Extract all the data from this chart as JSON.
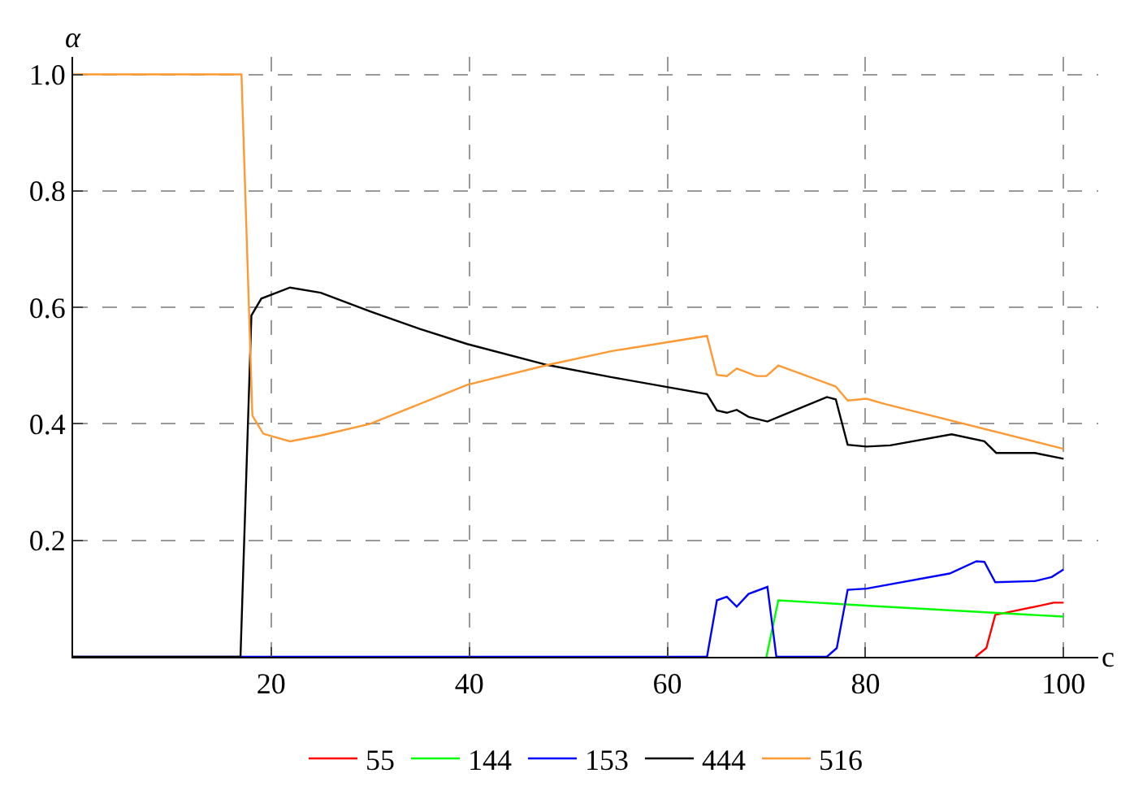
{
  "chart_data": {
    "type": "line",
    "xlabel": "c",
    "ylabel": "α",
    "xlim": [
      0,
      103.5
    ],
    "ylim": [
      0,
      1.03
    ],
    "xticks": [
      20,
      40,
      60,
      80,
      100
    ],
    "yticks": [
      0.2,
      0.4,
      0.6,
      0.8,
      {
        "value": 1,
        "label": "1.0"
      }
    ],
    "grid": true,
    "legend": "bottom",
    "marker": "none",
    "line_style": "solid",
    "series": [
      {
        "name": "55",
        "color": "#ff0000",
        "x": [
          91.1,
          92.2,
          93.1,
          97.7,
          99,
          100
        ],
        "values": [
          0,
          0.015,
          0.072,
          0.088,
          0.093,
          0.093
        ]
      },
      {
        "name": "144",
        "color": "#00ff00",
        "x": [
          70,
          71.2,
          80,
          100
        ],
        "values": [
          0,
          0.097,
          0.088,
          0.069
        ]
      },
      {
        "name": "153",
        "color": "#0000ff",
        "x": [
          0,
          64,
          65,
          66,
          67,
          68.2,
          70.1,
          71,
          76.1,
          77.1,
          78.2,
          80.1,
          88.5,
          91.2,
          92,
          93.1,
          97.1,
          98.8,
          100
        ],
        "values": [
          0,
          0,
          0.097,
          0.103,
          0.086,
          0.108,
          0.12,
          0,
          0,
          0.015,
          0.115,
          0.117,
          0.143,
          0.164,
          0.163,
          0.128,
          0.13,
          0.137,
          0.15
        ]
      },
      {
        "name": "444",
        "color": "#000000",
        "x": [
          0,
          16.9,
          18,
          19,
          21.9,
          25,
          30,
          35,
          39.8,
          47.9,
          54.4,
          64,
          65,
          66,
          67,
          68.2,
          70.1,
          76.1,
          77,
          78.2,
          80.1,
          82.5,
          88.7,
          92,
          93.2,
          97.1,
          100
        ],
        "values": [
          0,
          0,
          0.586,
          0.615,
          0.634,
          0.625,
          0.593,
          0.563,
          0.537,
          0.501,
          0.48,
          0.451,
          0.423,
          0.419,
          0.424,
          0.412,
          0.404,
          0.446,
          0.442,
          0.364,
          0.361,
          0.363,
          0.382,
          0.37,
          0.35,
          0.35,
          0.34
        ]
      },
      {
        "name": "516",
        "color": "#ff9933",
        "x": [
          0,
          17,
          18.1,
          19.2,
          21.9,
          25,
          30,
          39.8,
          47.9,
          54.4,
          64,
          65,
          66,
          67,
          69,
          70,
          71.2,
          77,
          78.2,
          80.1,
          82,
          100
        ],
        "values": [
          1.0,
          1.0,
          0.414,
          0.383,
          0.37,
          0.38,
          0.4,
          0.467,
          0.501,
          0.525,
          0.551,
          0.484,
          0.482,
          0.495,
          0.482,
          0.482,
          0.5,
          0.464,
          0.44,
          0.443,
          0.434,
          0.357
        ]
      }
    ]
  }
}
